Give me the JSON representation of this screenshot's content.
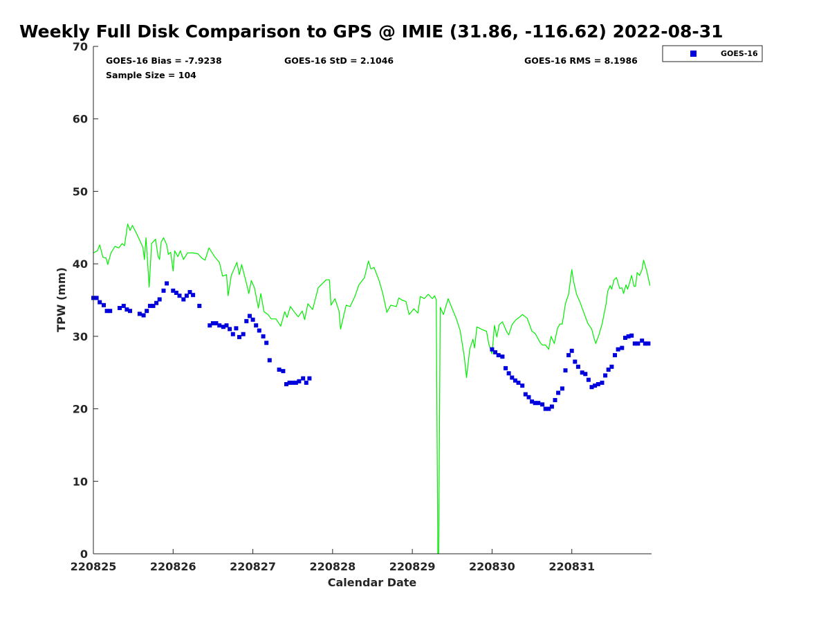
{
  "chart_data": {
    "type": "scatter",
    "title": "Weekly Full Disk Comparison to GPS @ IMIE (31.86, -116.62) 2022-08-31",
    "xlabel": "Calendar Date",
    "ylabel": "TPW (mm)",
    "xlim": [
      220825,
      220832
    ],
    "ylim": [
      0,
      70
    ],
    "yticks": [
      0,
      10,
      20,
      30,
      40,
      50,
      60,
      70
    ],
    "xticks": [
      {
        "value": 220825,
        "label": "220825"
      },
      {
        "value": 220826,
        "label": "220826"
      },
      {
        "value": 220827,
        "label": "220827"
      },
      {
        "value": 220828,
        "label": "220828"
      },
      {
        "value": 220829,
        "label": "220829"
      },
      {
        "value": 220830,
        "label": "220830"
      },
      {
        "value": 220831,
        "label": "220831"
      }
    ],
    "grid": false,
    "legend": {
      "placement": "outside-top-right",
      "entries": [
        "GOES-16"
      ]
    },
    "stats": {
      "bias": "GOES-16 Bias = -7.9238",
      "std": "GOES-16 StD = 2.1046",
      "rms": "GOES-16 RMS = 8.1986",
      "sample": "Sample Size = 104"
    },
    "colors": {
      "goes": "#0000dd",
      "gps": "#00ee00"
    },
    "series": [
      {
        "name": "GOES-16",
        "type": "scatter",
        "points": [
          [
            220825.0,
            35.3
          ],
          [
            220825.04,
            35.3
          ],
          [
            220825.08,
            34.7
          ],
          [
            220825.13,
            34.3
          ],
          [
            220825.17,
            33.5
          ],
          [
            220825.21,
            33.5
          ],
          [
            220825.33,
            33.9
          ],
          [
            220825.38,
            34.2
          ],
          [
            220825.42,
            33.7
          ],
          [
            220825.46,
            33.5
          ],
          [
            220825.58,
            33.1
          ],
          [
            220825.63,
            32.9
          ],
          [
            220825.67,
            33.5
          ],
          [
            220825.71,
            34.2
          ],
          [
            220825.75,
            34.2
          ],
          [
            220825.79,
            34.6
          ],
          [
            220825.83,
            35.1
          ],
          [
            220825.88,
            36.3
          ],
          [
            220825.92,
            37.3
          ],
          [
            220826.0,
            36.3
          ],
          [
            220826.04,
            36.0
          ],
          [
            220826.08,
            35.6
          ],
          [
            220826.13,
            35.1
          ],
          [
            220826.17,
            35.6
          ],
          [
            220826.21,
            36.1
          ],
          [
            220826.25,
            35.7
          ],
          [
            220826.33,
            34.2
          ],
          [
            220826.46,
            31.5
          ],
          [
            220826.5,
            31.8
          ],
          [
            220826.54,
            31.8
          ],
          [
            220826.58,
            31.5
          ],
          [
            220826.63,
            31.3
          ],
          [
            220826.67,
            31.5
          ],
          [
            220826.71,
            31.0
          ],
          [
            220826.75,
            30.3
          ],
          [
            220826.79,
            31.1
          ],
          [
            220826.83,
            29.9
          ],
          [
            220826.88,
            30.3
          ],
          [
            220826.92,
            32.1
          ],
          [
            220826.96,
            32.8
          ],
          [
            220827.0,
            32.3
          ],
          [
            220827.04,
            31.5
          ],
          [
            220827.08,
            30.8
          ],
          [
            220827.13,
            30.0
          ],
          [
            220827.17,
            29.1
          ],
          [
            220827.21,
            26.7
          ],
          [
            220827.33,
            25.4
          ],
          [
            220827.38,
            25.2
          ],
          [
            220827.42,
            23.4
          ],
          [
            220827.46,
            23.6
          ],
          [
            220827.5,
            23.6
          ],
          [
            220827.54,
            23.6
          ],
          [
            220827.58,
            23.8
          ],
          [
            220827.63,
            24.2
          ],
          [
            220827.67,
            23.6
          ],
          [
            220827.71,
            24.2
          ],
          [
            220830.0,
            28.2
          ],
          [
            220830.04,
            27.8
          ],
          [
            220830.08,
            27.4
          ],
          [
            220830.13,
            27.2
          ],
          [
            220830.17,
            25.6
          ],
          [
            220830.21,
            24.9
          ],
          [
            220830.25,
            24.3
          ],
          [
            220830.29,
            23.9
          ],
          [
            220830.33,
            23.6
          ],
          [
            220830.38,
            23.2
          ],
          [
            220830.42,
            22.0
          ],
          [
            220830.46,
            21.6
          ],
          [
            220830.5,
            21.0
          ],
          [
            220830.54,
            20.8
          ],
          [
            220830.58,
            20.8
          ],
          [
            220830.63,
            20.6
          ],
          [
            220830.67,
            20.0
          ],
          [
            220830.71,
            20.0
          ],
          [
            220830.75,
            20.3
          ],
          [
            220830.79,
            21.2
          ],
          [
            220830.83,
            22.2
          ],
          [
            220830.88,
            22.8
          ],
          [
            220830.92,
            25.3
          ],
          [
            220830.96,
            27.4
          ],
          [
            220831.0,
            28.0
          ],
          [
            220831.04,
            26.5
          ],
          [
            220831.08,
            25.8
          ],
          [
            220831.13,
            25.0
          ],
          [
            220831.17,
            24.8
          ],
          [
            220831.21,
            24.0
          ],
          [
            220831.25,
            23.0
          ],
          [
            220831.29,
            23.2
          ],
          [
            220831.33,
            23.4
          ],
          [
            220831.38,
            23.6
          ],
          [
            220831.42,
            24.6
          ],
          [
            220831.46,
            25.4
          ],
          [
            220831.5,
            25.8
          ],
          [
            220831.54,
            27.4
          ],
          [
            220831.58,
            28.2
          ],
          [
            220831.63,
            28.4
          ],
          [
            220831.67,
            29.8
          ],
          [
            220831.71,
            30.0
          ],
          [
            220831.75,
            30.1
          ],
          [
            220831.79,
            29.0
          ],
          [
            220831.83,
            29.0
          ],
          [
            220831.88,
            29.4
          ],
          [
            220831.92,
            29.0
          ],
          [
            220831.96,
            29.0
          ]
        ]
      },
      {
        "name": "GPS",
        "type": "line",
        "points": [
          [
            220825.0,
            41.5
          ],
          [
            220825.05,
            41.8
          ],
          [
            220825.08,
            42.6
          ],
          [
            220825.12,
            40.9
          ],
          [
            220825.16,
            40.8
          ],
          [
            220825.18,
            39.9
          ],
          [
            220825.22,
            41.5
          ],
          [
            220825.27,
            42.4
          ],
          [
            220825.32,
            42.2
          ],
          [
            220825.36,
            42.8
          ],
          [
            220825.39,
            42.5
          ],
          [
            220825.43,
            45.5
          ],
          [
            220825.46,
            44.6
          ],
          [
            220825.49,
            45.3
          ],
          [
            220825.55,
            44.0
          ],
          [
            220825.62,
            42.3
          ],
          [
            220825.64,
            40.6
          ],
          [
            220825.66,
            43.6
          ],
          [
            220825.7,
            36.8
          ],
          [
            220825.73,
            42.8
          ],
          [
            220825.78,
            43.4
          ],
          [
            220825.81,
            41.1
          ],
          [
            220825.83,
            40.6
          ],
          [
            220825.85,
            43.0
          ],
          [
            220825.88,
            43.6
          ],
          [
            220825.92,
            42.6
          ],
          [
            220825.94,
            41.3
          ],
          [
            220825.97,
            41.6
          ],
          [
            220826.0,
            39.0
          ],
          [
            220826.02,
            41.8
          ],
          [
            220826.06,
            41.0
          ],
          [
            220826.09,
            41.8
          ],
          [
            220826.13,
            40.6
          ],
          [
            220826.18,
            41.5
          ],
          [
            220826.25,
            41.5
          ],
          [
            220826.31,
            41.4
          ],
          [
            220826.36,
            40.8
          ],
          [
            220826.4,
            40.5
          ],
          [
            220826.45,
            42.2
          ],
          [
            220826.52,
            41.0
          ],
          [
            220826.58,
            40.2
          ],
          [
            220826.62,
            38.3
          ],
          [
            220826.67,
            38.5
          ],
          [
            220826.69,
            35.6
          ],
          [
            220826.73,
            38.4
          ],
          [
            220826.8,
            40.2
          ],
          [
            220826.83,
            38.5
          ],
          [
            220826.86,
            39.9
          ],
          [
            220826.92,
            37.3
          ],
          [
            220826.95,
            35.9
          ],
          [
            220826.98,
            37.7
          ],
          [
            220827.02,
            36.7
          ],
          [
            220827.07,
            33.9
          ],
          [
            220827.1,
            35.9
          ],
          [
            220827.14,
            33.4
          ],
          [
            220827.19,
            33.0
          ],
          [
            220827.23,
            32.4
          ],
          [
            220827.29,
            32.4
          ],
          [
            220827.35,
            31.4
          ],
          [
            220827.4,
            33.4
          ],
          [
            220827.43,
            32.6
          ],
          [
            220827.47,
            34.1
          ],
          [
            220827.53,
            33.2
          ],
          [
            220827.57,
            32.7
          ],
          [
            220827.62,
            33.5
          ],
          [
            220827.65,
            32.3
          ],
          [
            220827.69,
            34.5
          ],
          [
            220827.75,
            33.7
          ],
          [
            220827.82,
            36.7
          ],
          [
            220827.92,
            37.8
          ],
          [
            220827.96,
            37.8
          ],
          [
            220827.98,
            34.3
          ],
          [
            220828.03,
            35.2
          ],
          [
            220828.08,
            33.5
          ],
          [
            220828.1,
            31.0
          ],
          [
            220828.17,
            34.3
          ],
          [
            220828.22,
            34.1
          ],
          [
            220828.28,
            35.5
          ],
          [
            220828.33,
            37.1
          ],
          [
            220828.4,
            38.1
          ],
          [
            220828.45,
            40.4
          ],
          [
            220828.48,
            39.3
          ],
          [
            220828.52,
            39.5
          ],
          [
            220828.58,
            37.8
          ],
          [
            220828.63,
            35.9
          ],
          [
            220828.68,
            33.3
          ],
          [
            220828.73,
            34.3
          ],
          [
            220828.8,
            34.1
          ],
          [
            220828.83,
            35.3
          ],
          [
            220828.87,
            35.0
          ],
          [
            220828.92,
            34.8
          ],
          [
            220828.96,
            33.0
          ],
          [
            220829.02,
            33.8
          ],
          [
            220829.07,
            33.2
          ],
          [
            220829.1,
            35.5
          ],
          [
            220829.15,
            35.2
          ],
          [
            220829.2,
            35.8
          ],
          [
            220829.25,
            35.2
          ],
          [
            220829.28,
            35.6
          ],
          [
            220829.3,
            35.0
          ],
          [
            220829.32,
            0
          ],
          [
            220829.33,
            0
          ],
          [
            220829.35,
            34.0
          ],
          [
            220829.39,
            33.0
          ],
          [
            220829.45,
            35.2
          ],
          [
            220829.5,
            33.8
          ],
          [
            220829.55,
            32.5
          ],
          [
            220829.6,
            30.8
          ],
          [
            220829.65,
            27.3
          ],
          [
            220829.68,
            24.3
          ],
          [
            220829.72,
            28.2
          ],
          [
            220829.76,
            29.6
          ],
          [
            220829.78,
            28.4
          ],
          [
            220829.81,
            31.3
          ],
          [
            220829.88,
            30.9
          ],
          [
            220829.93,
            30.7
          ],
          [
            220829.96,
            28.9
          ],
          [
            220830.0,
            27.6
          ],
          [
            220830.03,
            31.5
          ],
          [
            220830.06,
            29.9
          ],
          [
            220830.09,
            31.6
          ],
          [
            220830.13,
            32.0
          ],
          [
            220830.18,
            30.7
          ],
          [
            220830.21,
            30.2
          ],
          [
            220830.25,
            31.6
          ],
          [
            220830.3,
            32.3
          ],
          [
            220830.35,
            32.7
          ],
          [
            220830.38,
            33.0
          ],
          [
            220830.44,
            32.5
          ],
          [
            220830.5,
            30.7
          ],
          [
            220830.54,
            30.4
          ],
          [
            220830.6,
            29.2
          ],
          [
            220830.63,
            28.8
          ],
          [
            220830.67,
            28.8
          ],
          [
            220830.71,
            28.2
          ],
          [
            220830.74,
            30.0
          ],
          [
            220830.78,
            29.0
          ],
          [
            220830.82,
            31.1
          ],
          [
            220830.85,
            31.7
          ],
          [
            220830.88,
            31.7
          ],
          [
            220830.92,
            34.5
          ],
          [
            220830.96,
            35.8
          ],
          [
            220831.0,
            39.2
          ],
          [
            220831.02,
            37.7
          ],
          [
            220831.06,
            35.8
          ],
          [
            220831.1,
            34.8
          ],
          [
            220831.15,
            33.3
          ],
          [
            220831.2,
            31.8
          ],
          [
            220831.25,
            31.0
          ],
          [
            220831.28,
            29.7
          ],
          [
            220831.3,
            29.0
          ],
          [
            220831.34,
            30.2
          ],
          [
            220831.38,
            31.7
          ],
          [
            220831.43,
            34.5
          ],
          [
            220831.45,
            36.2
          ],
          [
            220831.48,
            37.0
          ],
          [
            220831.5,
            36.5
          ],
          [
            220831.53,
            37.8
          ],
          [
            220831.56,
            38.1
          ],
          [
            220831.6,
            36.6
          ],
          [
            220831.63,
            36.7
          ],
          [
            220831.65,
            35.9
          ],
          [
            220831.68,
            37.1
          ],
          [
            220831.7,
            36.5
          ],
          [
            220831.73,
            37.6
          ],
          [
            220831.75,
            38.4
          ],
          [
            220831.78,
            36.9
          ],
          [
            220831.8,
            36.9
          ],
          [
            220831.82,
            38.8
          ],
          [
            220831.85,
            38.4
          ],
          [
            220831.88,
            39.2
          ],
          [
            220831.9,
            40.5
          ],
          [
            220831.94,
            39.0
          ],
          [
            220831.98,
            37.0
          ]
        ]
      }
    ]
  }
}
